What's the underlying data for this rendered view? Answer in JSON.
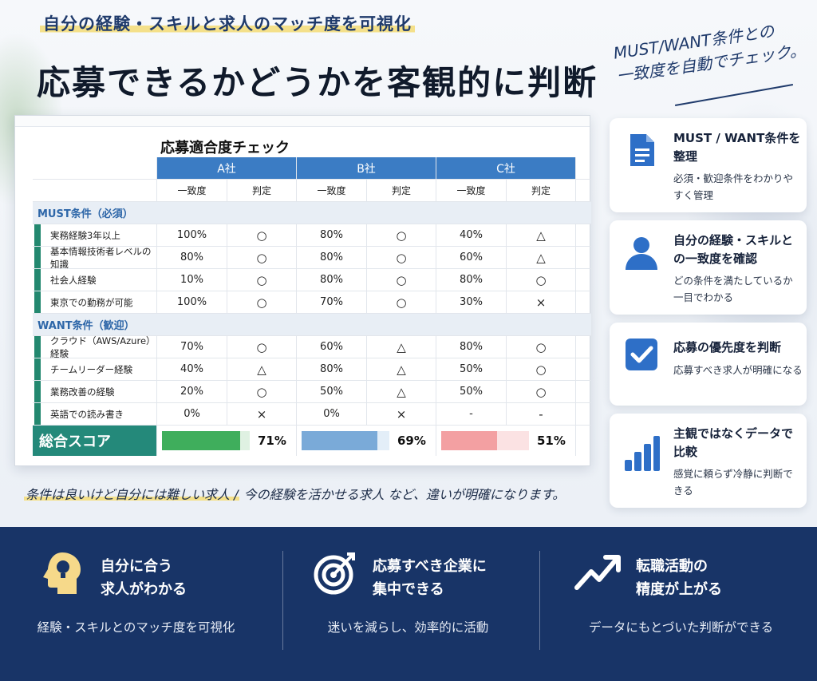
{
  "header": {
    "subtitle": "自分の経験・スキルと求人のマッチ度を可視化",
    "title": "応募できるかどうかを客観的に判断",
    "hand_note_line1": "MUST/WANT条件との",
    "hand_note_line2": "一致度を自動でチェック。"
  },
  "sheet": {
    "title": "応募適合度チェック",
    "companies": [
      "A社",
      "B社",
      "C社"
    ],
    "col_match": "一致度",
    "col_judge": "判定",
    "sections": [
      {
        "label": "MUST条件（必須）",
        "rows": [
          {
            "label": "実務経験3年以上",
            "vals": [
              "100%",
              "○",
              "80%",
              "○",
              "40%",
              "△"
            ]
          },
          {
            "label": "基本情報技術者レベルの知識",
            "vals": [
              "80%",
              "○",
              "80%",
              "○",
              "60%",
              "△"
            ]
          },
          {
            "label": "社会人経験",
            "vals": [
              "10%",
              "○",
              "80%",
              "○",
              "80%",
              "○"
            ]
          },
          {
            "label": "東京での勤務が可能",
            "vals": [
              "100%",
              "○",
              "70%",
              "○",
              "30%",
              "×"
            ]
          }
        ]
      },
      {
        "label": "WANT条件（歓迎）",
        "rows": [
          {
            "label": "クラウド（AWS/Azure）経験",
            "vals": [
              "70%",
              "○",
              "60%",
              "△",
              "80%",
              "○"
            ]
          },
          {
            "label": "チームリーダー経験",
            "vals": [
              "40%",
              "△",
              "80%",
              "△",
              "50%",
              "○"
            ]
          },
          {
            "label": "業務改善の経験",
            "vals": [
              "20%",
              "○",
              "50%",
              "△",
              "50%",
              "○"
            ]
          },
          {
            "label": "英語での読み書き",
            "vals": [
              "0%",
              "×",
              "0%",
              "×",
              "-",
              "-"
            ]
          }
        ]
      }
    ],
    "score_label": "総合スコア",
    "scores": [
      {
        "text": "71%",
        "value": 71,
        "color": "#3fae5c",
        "track": "#dff1e2"
      },
      {
        "text": "69%",
        "value": 69,
        "color": "#7aaad8",
        "track": "#e3eef8"
      },
      {
        "text": "51%",
        "value": 51,
        "color": "#f3a0a2",
        "track": "#fbe2e3"
      }
    ]
  },
  "cards": [
    {
      "title": "MUST / WANT条件を整理",
      "desc": "必須・歓迎条件をわかりやすく管理",
      "icon": "document-icon"
    },
    {
      "title": "自分の経験・スキルとの一致度を確認",
      "desc": "どの条件を満たしているか一目でわかる",
      "icon": "user-icon"
    },
    {
      "title": "応募の優先度を判断",
      "desc": "応募すべき求人が明確になる",
      "icon": "checkbox-icon"
    },
    {
      "title": "主観ではなくデータで比較",
      "desc": "感覚に頼らず冷静に判断できる",
      "icon": "bar-chart-icon"
    }
  ],
  "note": {
    "highlight": "条件は良いけど自分には難しい求人 /",
    "rest": "今の経験を活かせる求人 など、違いが明確になります。"
  },
  "benefits": [
    {
      "title_line1": "自分に合う",
      "title_line2": "求人がわかる",
      "desc": "経験・スキルとのマッチ度を可視化",
      "icon": "head-lightbulb-icon"
    },
    {
      "title_line1": "応募すべき企業に",
      "title_line2": "集中できる",
      "desc": "迷いを減らし、効率的に活動",
      "icon": "target-icon"
    },
    {
      "title_line1": "転職活動の",
      "title_line2": "精度が上がる",
      "desc": "データにもとづいた判断ができる",
      "icon": "trend-up-icon"
    }
  ]
}
